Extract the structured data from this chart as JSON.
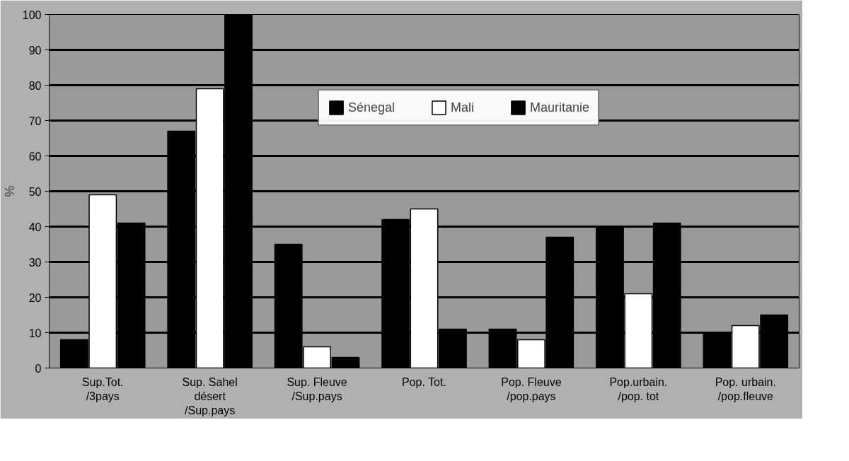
{
  "chart_data": {
    "type": "bar",
    "ylabel": "%",
    "categories": [
      "Sup.Tot.\n/3pays",
      "Sup. Sahel\ndésert\n/Sup.pays",
      "Sup. Fleuve\n/Sup.pays",
      "Pop. Tot.",
      "Pop. Fleuve\n/pop.pays",
      "Pop.urbain.\n/pop. tot",
      "Pop. urbain.\n/pop.fleuve"
    ],
    "series": [
      {
        "name": "Sénegal",
        "color": "#000000",
        "values": [
          8,
          67,
          35,
          42,
          11,
          40,
          10
        ]
      },
      {
        "name": "Mali",
        "color": "#ffffff",
        "values": [
          49,
          79,
          6,
          45,
          8,
          21,
          12
        ]
      },
      {
        "name": "Mauritanie",
        "color": "#000000",
        "values": [
          41,
          100,
          3,
          11,
          37,
          41,
          15
        ]
      }
    ],
    "ylim": [
      0,
      100
    ],
    "yticks": [
      0,
      10,
      20,
      30,
      40,
      50,
      60,
      70,
      80,
      90,
      100
    ],
    "grid": "y",
    "legend": "top"
  }
}
